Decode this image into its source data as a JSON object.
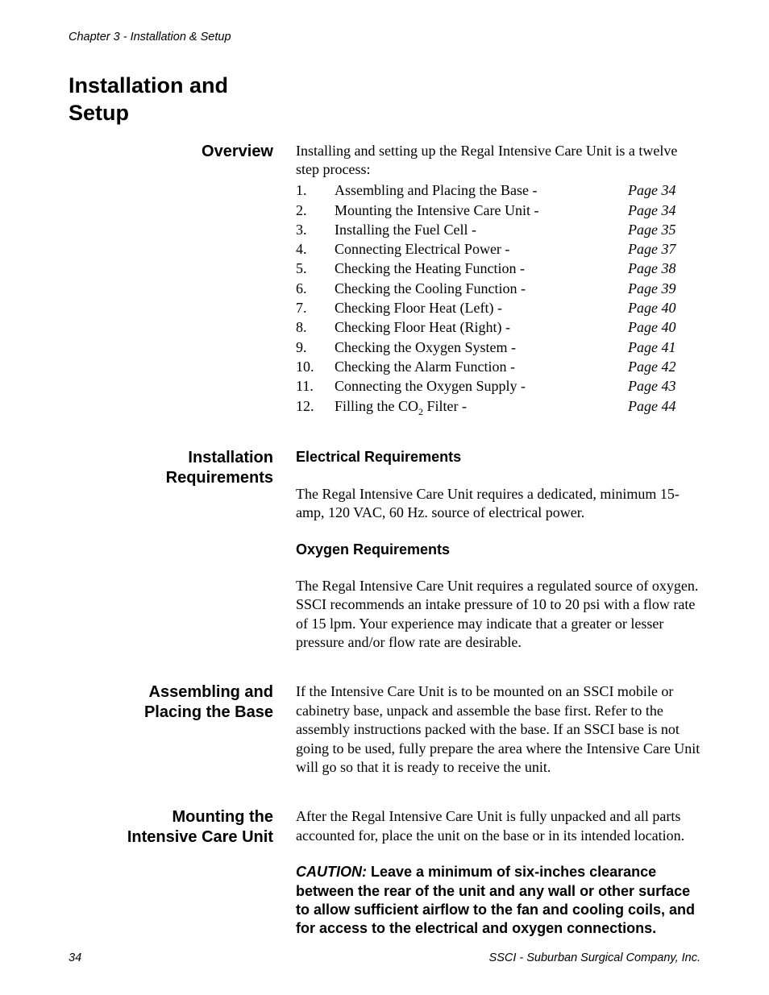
{
  "chapter_header": "Chapter 3 - Installation & Setup",
  "main_title_l1": "Installation and",
  "main_title_l2": "Setup",
  "overview": {
    "label": "Overview",
    "intro": "Installing and setting up the Regal Intensive Care Unit is a twelve step process:",
    "steps": [
      {
        "num": "1.",
        "text": "Assembling and Placing the Base -",
        "page": "Page 34"
      },
      {
        "num": "2.",
        "text": "Mounting the Intensive Care Unit -",
        "page": "Page 34"
      },
      {
        "num": "3.",
        "text": "Installing the Fuel Cell -",
        "page": "Page 35"
      },
      {
        "num": "4.",
        "text": "Connecting Electrical Power -",
        "page": "Page 37"
      },
      {
        "num": "5.",
        "text": "Checking the Heating Function -",
        "page": "Page 38"
      },
      {
        "num": "6.",
        "text": "Checking the Cooling Function -",
        "page": "Page 39"
      },
      {
        "num": "7.",
        "text": "Checking Floor Heat (Left) -",
        "page": "Page 40"
      },
      {
        "num": "8.",
        "text": "Checking Floor Heat (Right) -",
        "page": "Page 40"
      },
      {
        "num": "9.",
        "text": "Checking the Oxygen System -",
        "page": "Page 41"
      },
      {
        "num": "10.",
        "text": "Checking the Alarm Function -",
        "page": "Page 42"
      },
      {
        "num": "11.",
        "text": "Connecting the Oxygen Supply -",
        "page": "Page 43"
      },
      {
        "num": "12.",
        "text_pre": "Filling the CO",
        "text_sub": "2",
        "text_post": " Filter -",
        "page": "Page 44"
      }
    ]
  },
  "install_req": {
    "label_l1": "Installation",
    "label_l2": "Requirements",
    "elec_heading": "Electrical Requirements",
    "elec_text": "The Regal Intensive Care Unit requires a dedicated, minimum 15-amp, 120 VAC,  60 Hz. source of electrical power.",
    "oxy_heading": "Oxygen Requirements",
    "oxy_text": "The Regal Intensive Care Unit requires a regulated source of oxygen. SSCI recommends an intake pressure of 10 to 20 psi with a flow rate of 15 lpm. Your experience may indicate that a greater or lesser pressure and/or flow rate are desirable."
  },
  "assembling": {
    "label_l1": "Assembling and",
    "label_l2": "Placing the Base",
    "text": "If the Intensive Care Unit is to be mounted on an SSCI mobile or cabinetry base, unpack and assemble the base first. Refer to the assembly instructions packed with the base. If an SSCI base is not going to be used, fully prepare the area where the Intensive Care Unit will go so that it is ready to receive the unit."
  },
  "mounting": {
    "label_l1": "Mounting the",
    "label_l2": "Intensive Care Unit",
    "text": "After the Regal Intensive Care Unit is fully unpacked and all parts accounted for, place the unit on the base or in its intended location.",
    "caution_label": "CAUTION:",
    "caution_text": "  Leave a minimum of six-inches clearance between the rear of the unit and any wall or other surface to allow sufficient airflow to the fan and cooling coils, and for access to the electrical and oxygen connections."
  },
  "footer": {
    "page_num": "34",
    "company": "SSCI - Suburban Surgical Company, Inc."
  }
}
